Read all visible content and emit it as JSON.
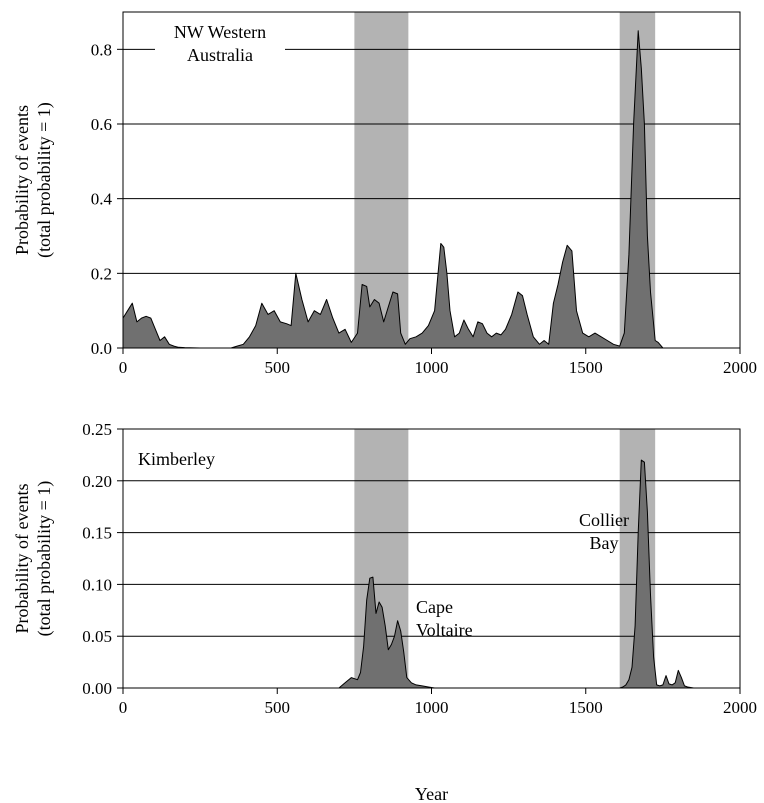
{
  "chart_data": [
    {
      "type": "area",
      "annotation": "NW Western\nAustralia",
      "ylabel": "Probability of events\n(total probability = 1)",
      "xlabel": "",
      "xlim": [
        0,
        2000
      ],
      "ylim": [
        0,
        0.9
      ],
      "xticks": [
        0,
        500,
        1000,
        1500,
        2000
      ],
      "yticks": [
        "0.0",
        "0.2",
        "0.4",
        "0.6",
        "0.8"
      ],
      "ytick_values": [
        0,
        0.2,
        0.4,
        0.6,
        0.8
      ],
      "shaded_bands": [
        [
          750,
          925
        ],
        [
          1610,
          1725
        ]
      ],
      "grid": "horizontal",
      "series": [
        {
          "x": [
            0,
            15,
            30,
            45,
            60,
            75,
            90,
            105,
            120,
            135,
            150,
            165,
            180,
            200,
            250,
            300,
            350,
            370,
            390,
            410,
            430,
            450,
            470,
            490,
            510,
            530,
            545,
            560,
            580,
            600,
            620,
            640,
            660,
            680,
            700,
            720,
            740,
            760,
            775,
            790,
            800,
            815,
            830,
            845,
            860,
            875,
            890,
            900,
            915,
            930,
            950,
            970,
            990,
            1010,
            1030,
            1040,
            1050,
            1060,
            1075,
            1090,
            1105,
            1120,
            1135,
            1150,
            1165,
            1180,
            1195,
            1210,
            1225,
            1240,
            1260,
            1280,
            1295,
            1310,
            1330,
            1350,
            1365,
            1380,
            1395,
            1410,
            1425,
            1440,
            1455,
            1470,
            1490,
            1510,
            1530,
            1550,
            1570,
            1590,
            1610,
            1625,
            1640,
            1655,
            1670,
            1680,
            1690,
            1700,
            1710,
            1725,
            1735,
            1750,
            1800,
            1900,
            2000
          ],
          "y": [
            0.08,
            0.1,
            0.12,
            0.07,
            0.08,
            0.085,
            0.08,
            0.05,
            0.02,
            0.03,
            0.01,
            0.005,
            0.002,
            0.001,
            0.0,
            0.0,
            0.0,
            0.005,
            0.01,
            0.03,
            0.06,
            0.12,
            0.09,
            0.1,
            0.07,
            0.065,
            0.06,
            0.2,
            0.13,
            0.07,
            0.1,
            0.09,
            0.13,
            0.08,
            0.04,
            0.05,
            0.015,
            0.04,
            0.17,
            0.165,
            0.11,
            0.13,
            0.12,
            0.07,
            0.11,
            0.15,
            0.145,
            0.04,
            0.01,
            0.025,
            0.03,
            0.04,
            0.06,
            0.1,
            0.28,
            0.27,
            0.2,
            0.1,
            0.03,
            0.04,
            0.075,
            0.05,
            0.03,
            0.07,
            0.065,
            0.04,
            0.03,
            0.04,
            0.035,
            0.05,
            0.09,
            0.15,
            0.14,
            0.09,
            0.03,
            0.01,
            0.02,
            0.01,
            0.12,
            0.17,
            0.23,
            0.275,
            0.26,
            0.1,
            0.04,
            0.03,
            0.04,
            0.03,
            0.02,
            0.01,
            0.005,
            0.04,
            0.25,
            0.6,
            0.85,
            0.75,
            0.6,
            0.3,
            0.15,
            0.02,
            0.015,
            0.0,
            0.0,
            0.0,
            0.0
          ]
        }
      ]
    },
    {
      "type": "area",
      "annotation": "Kimberley",
      "ylabel": "Probability of events\n(total probability = 1)",
      "xlabel": "Year",
      "xlim": [
        0,
        2000
      ],
      "ylim": [
        0,
        0.25
      ],
      "xticks": [
        0,
        500,
        1000,
        1500,
        2000
      ],
      "yticks": [
        "0.00",
        "0.05",
        "0.10",
        "0.15",
        "0.20",
        "0.25"
      ],
      "ytick_values": [
        0,
        0.05,
        0.1,
        0.15,
        0.2,
        0.25
      ],
      "shaded_bands": [
        [
          750,
          925
        ],
        [
          1610,
          1725
        ]
      ],
      "grid": "horizontal",
      "labels": [
        {
          "text": "Cape\nVoltaire",
          "x": 960,
          "y": 0.075
        },
        {
          "text": "Collier\nBay",
          "x": 1570,
          "y": 0.18
        }
      ],
      "series": [
        {
          "x": [
            0,
            500,
            700,
            720,
            740,
            760,
            770,
            780,
            790,
            800,
            810,
            820,
            830,
            840,
            850,
            860,
            870,
            880,
            890,
            900,
            910,
            920,
            935,
            950,
            970,
            990,
            1010,
            1100,
            1500,
            1610,
            1620,
            1630,
            1640,
            1650,
            1660,
            1670,
            1680,
            1690,
            1700,
            1710,
            1720,
            1730,
            1740,
            1750,
            1760,
            1770,
            1780,
            1790,
            1800,
            1810,
            1820,
            1830,
            1850,
            1900,
            1950,
            2000
          ],
          "y": [
            0.0,
            0.0,
            0.0,
            0.005,
            0.01,
            0.008,
            0.015,
            0.04,
            0.085,
            0.106,
            0.107,
            0.072,
            0.083,
            0.078,
            0.06,
            0.037,
            0.042,
            0.05,
            0.065,
            0.055,
            0.035,
            0.01,
            0.005,
            0.003,
            0.002,
            0.001,
            0.0,
            0.0,
            0.0,
            0.0,
            0.001,
            0.003,
            0.008,
            0.02,
            0.06,
            0.15,
            0.22,
            0.218,
            0.17,
            0.09,
            0.03,
            0.003,
            0.002,
            0.003,
            0.012,
            0.004,
            0.003,
            0.005,
            0.017,
            0.01,
            0.002,
            0.001,
            0.0,
            0.0,
            0.0,
            0.0
          ]
        }
      ]
    }
  ],
  "colors": {
    "band": "#b3b3b3",
    "fill": "#707070",
    "stroke": "#000000",
    "grid": "#000000"
  }
}
